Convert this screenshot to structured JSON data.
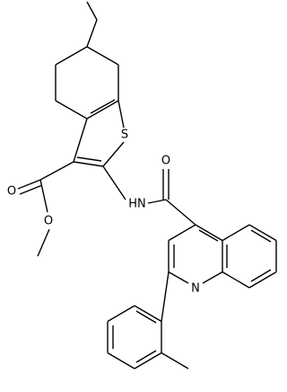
{
  "atoms": [
    {
      "label": "S"
    },
    {
      "label": "O"
    },
    {
      "label": "O"
    },
    {
      "label": "O"
    },
    {
      "label": "HN"
    },
    {
      "label": "N"
    }
  ]
}
